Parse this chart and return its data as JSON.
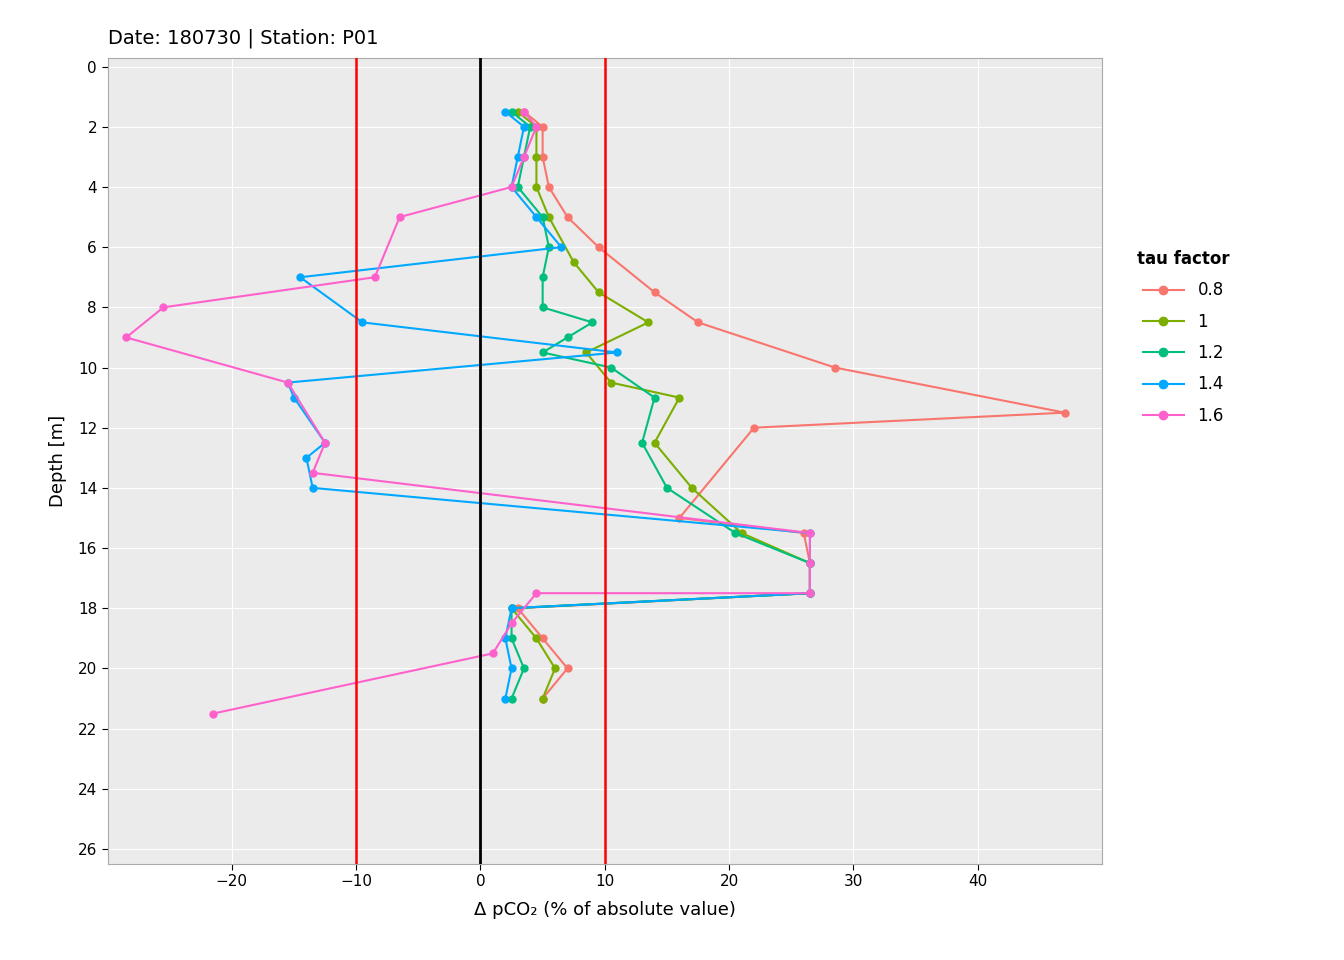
{
  "title": "Date: 180730 | Station: P01",
  "xlabel": "Δ pCO₂ (% of absolute value)",
  "ylabel": "Depth [m]",
  "ylim_bottom": 26.5,
  "ylim_top": -0.3,
  "xlim_left": -30,
  "xlim_right": 50,
  "xticks": [
    -20,
    -10,
    0,
    10,
    20,
    30,
    40
  ],
  "yticks": [
    0,
    2,
    4,
    6,
    8,
    10,
    12,
    14,
    16,
    18,
    20,
    22,
    24,
    26
  ],
  "vlines_red": [
    -10,
    10
  ],
  "vline_black": 0,
  "legend_title": "tau factor",
  "bg_color": "#ebebeb",
  "grid_color": "#ffffff",
  "series": [
    {
      "label": "0.8",
      "color": "#F8766D",
      "depth": [
        1.5,
        2.0,
        3.0,
        4.0,
        5.0,
        6.0,
        7.5,
        8.5,
        10.0,
        11.5,
        12.0,
        15.0,
        15.5,
        16.5,
        17.5,
        18.0,
        19.0,
        20.0,
        21.0
      ],
      "value": [
        3.5,
        5.0,
        5.0,
        5.5,
        7.0,
        9.5,
        14.0,
        17.5,
        28.5,
        47.0,
        22.0,
        16.0,
        26.0,
        26.5,
        26.5,
        3.0,
        5.0,
        7.0,
        5.0
      ]
    },
    {
      "label": "1",
      "color": "#7CAE00",
      "depth": [
        1.5,
        2.0,
        3.0,
        4.0,
        5.0,
        6.5,
        7.5,
        8.5,
        9.5,
        10.5,
        11.0,
        12.5,
        14.0,
        15.5,
        16.5,
        17.5,
        18.0,
        19.0,
        20.0,
        21.0
      ],
      "value": [
        3.0,
        4.5,
        4.5,
        4.5,
        5.5,
        7.5,
        9.5,
        13.5,
        8.5,
        10.5,
        16.0,
        14.0,
        17.0,
        21.0,
        26.5,
        26.5,
        2.5,
        4.5,
        6.0,
        5.0
      ]
    },
    {
      "label": "1.2",
      "color": "#00BF7D",
      "depth": [
        1.5,
        2.0,
        3.0,
        4.0,
        5.0,
        6.0,
        7.0,
        8.0,
        8.5,
        9.0,
        9.5,
        10.0,
        11.0,
        12.5,
        14.0,
        15.5,
        16.5,
        17.5,
        18.0,
        19.0,
        20.0,
        21.0
      ],
      "value": [
        2.5,
        4.0,
        3.5,
        3.0,
        5.0,
        5.5,
        5.0,
        5.0,
        9.0,
        7.0,
        5.0,
        10.5,
        14.0,
        13.0,
        15.0,
        20.5,
        26.5,
        26.5,
        2.5,
        2.5,
        3.5,
        2.5
      ]
    },
    {
      "label": "1.4",
      "color": "#00A9FF",
      "depth": [
        1.5,
        2.0,
        3.0,
        4.0,
        5.0,
        6.0,
        7.0,
        8.5,
        9.5,
        10.5,
        11.0,
        12.5,
        13.0,
        14.0,
        15.5,
        16.5,
        17.5,
        18.0,
        19.0,
        20.0,
        21.0
      ],
      "value": [
        2.0,
        3.5,
        3.0,
        2.5,
        4.5,
        6.5,
        -14.5,
        -9.5,
        11.0,
        -15.5,
        -15.0,
        -12.5,
        -14.0,
        -13.5,
        26.5,
        26.5,
        26.5,
        2.5,
        2.0,
        2.5,
        2.0
      ]
    },
    {
      "label": "1.6",
      "color": "#FF61CC",
      "depth": [
        1.5,
        2.0,
        3.0,
        4.0,
        5.0,
        7.0,
        8.0,
        9.0,
        10.5,
        12.5,
        13.5,
        15.5,
        16.5,
        17.5,
        17.5,
        18.5,
        19.5,
        21.5
      ],
      "value": [
        3.5,
        4.5,
        3.5,
        2.5,
        -6.5,
        -8.5,
        -25.5,
        -28.5,
        -15.5,
        -12.5,
        -13.5,
        26.5,
        26.5,
        26.5,
        4.5,
        2.5,
        1.0,
        -21.5
      ]
    }
  ]
}
